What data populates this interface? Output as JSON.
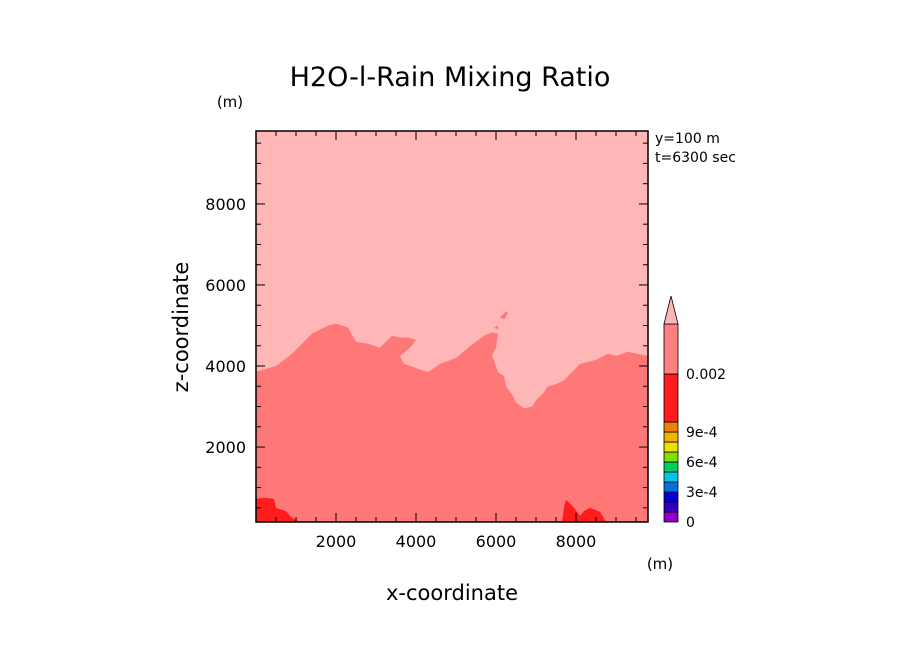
{
  "chart_data": {
    "type": "heatmap",
    "title": "H2O-l-Rain Mixing Ratio",
    "xlabel": "x-coordinate",
    "ylabel": "z-coordinate",
    "x_unit": "(m)",
    "y_unit": "(m)",
    "annotations": [
      "y=100 m",
      "t=6300 sec"
    ],
    "xlim": [
      0,
      9800
    ],
    "ylim": [
      150,
      9800
    ],
    "xticks": [
      2000,
      4000,
      6000,
      8000
    ],
    "yticks": [
      2000,
      4000,
      6000,
      8000
    ],
    "xtick_labels": [
      "2000",
      "4000",
      "6000",
      "8000"
    ],
    "ytick_labels": [
      "2000",
      "4000",
      "6000",
      "8000"
    ],
    "field": {
      "upper_region_color": "#ffb6b6",
      "main_region_color": "#ff7878",
      "core_region_color": "#ff1c1c",
      "main_region_top": [
        [
          0,
          3860
        ],
        [
          500,
          4000
        ],
        [
          900,
          4300
        ],
        [
          1400,
          4800
        ],
        [
          1800,
          5000
        ],
        [
          2000,
          5050
        ],
        [
          2300,
          4950
        ],
        [
          2500,
          4600
        ],
        [
          2800,
          4550
        ],
        [
          3100,
          4450
        ],
        [
          3400,
          4750
        ],
        [
          3600,
          4700
        ],
        [
          3800,
          4700
        ],
        [
          4000,
          4650
        ],
        [
          3850,
          4450
        ],
        [
          3600,
          4250
        ],
        [
          3700,
          4050
        ],
        [
          4000,
          3950
        ],
        [
          4300,
          3850
        ],
        [
          4600,
          4050
        ],
        [
          5000,
          4200
        ],
        [
          5300,
          4450
        ],
        [
          5700,
          4750
        ],
        [
          5900,
          4830
        ],
        [
          6050,
          4800
        ],
        [
          6000,
          4450
        ],
        [
          5900,
          4250
        ],
        [
          6000,
          4000
        ],
        [
          6050,
          3850
        ],
        [
          6200,
          3750
        ],
        [
          6250,
          3500
        ],
        [
          6400,
          3300
        ],
        [
          6500,
          3100
        ],
        [
          6700,
          2950
        ],
        [
          6900,
          3000
        ],
        [
          7000,
          3150
        ],
        [
          7200,
          3350
        ],
        [
          7300,
          3500
        ],
        [
          7500,
          3550
        ],
        [
          7700,
          3650
        ],
        [
          7900,
          3850
        ],
        [
          8100,
          4050
        ],
        [
          8500,
          4150
        ],
        [
          8800,
          4300
        ],
        [
          9000,
          4250
        ],
        [
          9300,
          4350
        ],
        [
          9500,
          4300
        ],
        [
          9800,
          4250
        ]
      ],
      "core_patches": [
        [
          [
            0,
            150
          ],
          [
            0,
            720
          ],
          [
            200,
            750
          ],
          [
            450,
            720
          ],
          [
            500,
            500
          ],
          [
            750,
            420
          ],
          [
            900,
            250
          ],
          [
            1100,
            150
          ]
        ],
        [
          [
            7650,
            150
          ],
          [
            7700,
            500
          ],
          [
            7750,
            700
          ],
          [
            7950,
            500
          ],
          [
            8100,
            300
          ],
          [
            8200,
            420
          ],
          [
            8350,
            500
          ],
          [
            8600,
            400
          ],
          [
            8750,
            150
          ]
        ]
      ],
      "small_patches": [
        [
          [
            6100,
            5200
          ],
          [
            6250,
            5350
          ],
          [
            6300,
            5300
          ],
          [
            6200,
            5150
          ]
        ],
        [
          [
            5950,
            4950
          ],
          [
            6050,
            5000
          ],
          [
            6050,
            4900
          ]
        ]
      ]
    },
    "colorbar": {
      "levels": [
        0,
        0.0001,
        0.0002,
        0.0003,
        0.0004,
        0.0005,
        0.0006,
        0.0007,
        0.0008,
        0.0009,
        0.001,
        0.002
      ],
      "colors": [
        "#9000c8",
        "#3000c0",
        "#0000d8",
        "#0070e0",
        "#00c8e8",
        "#00d060",
        "#80e000",
        "#f0e000",
        "#f0b400",
        "#f08000",
        "#ff1c1c",
        "#ff8080"
      ],
      "over_color": "#ffb6b6",
      "tick_values": [
        0,
        0.0003,
        0.0006,
        0.0009,
        0.002
      ],
      "tick_labels": [
        "0",
        "3e-4",
        "6e-4",
        "9e-4",
        "0.002"
      ],
      "extend": "max"
    }
  }
}
